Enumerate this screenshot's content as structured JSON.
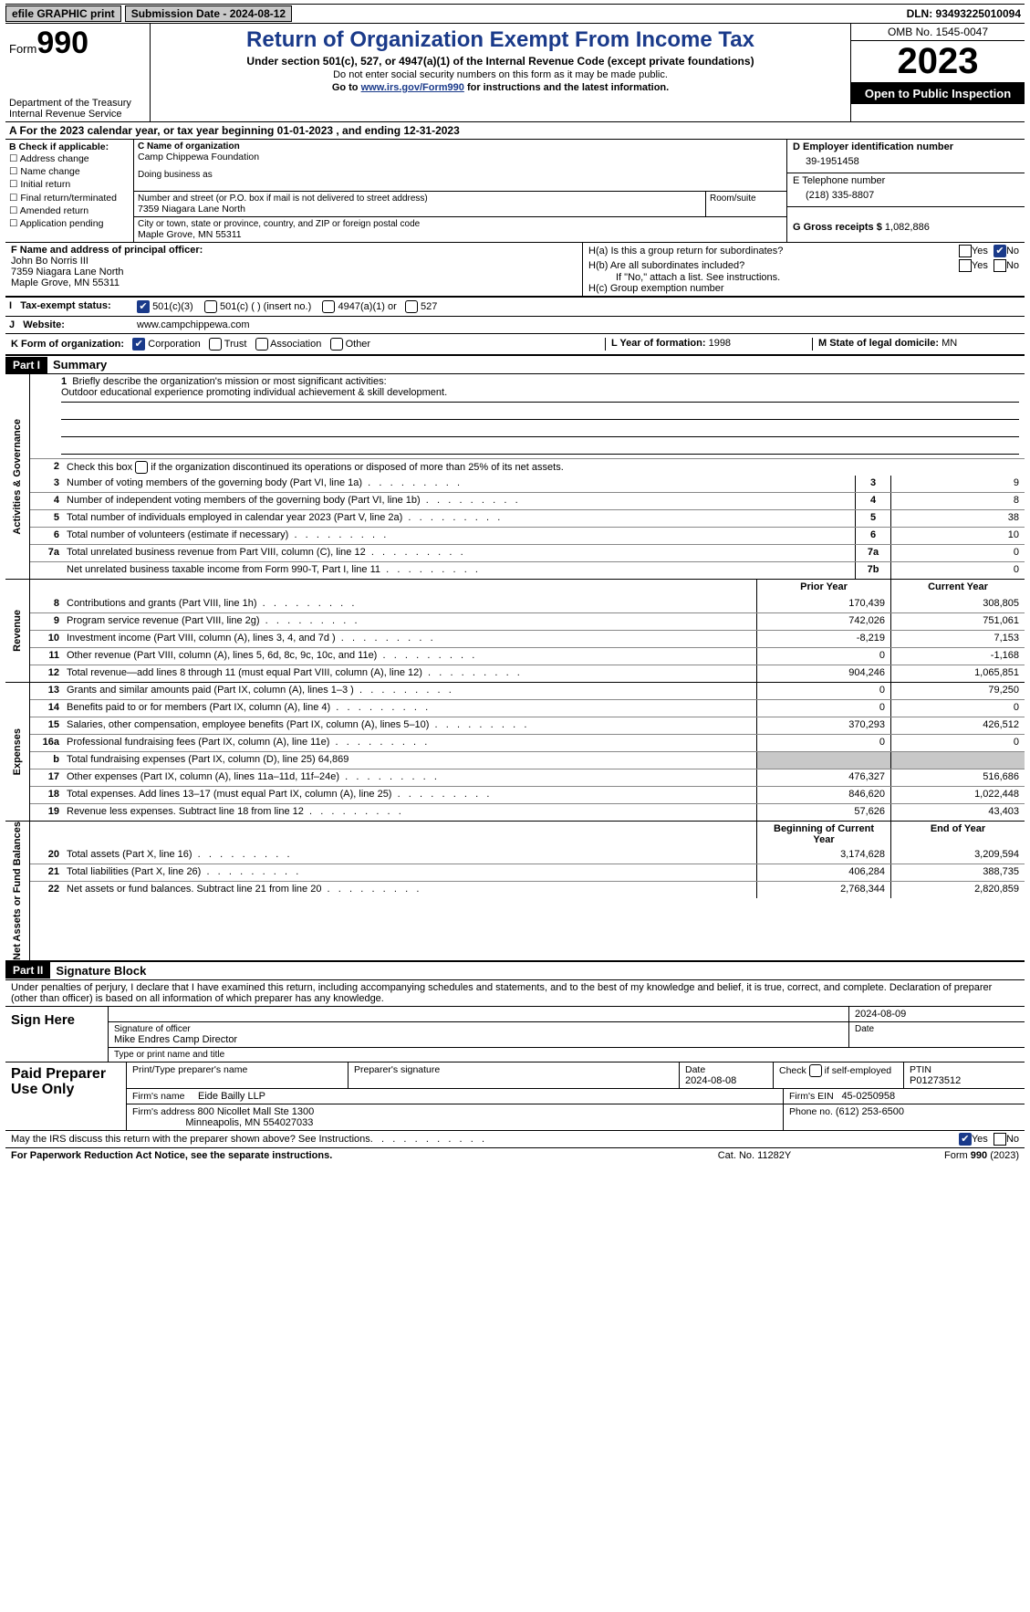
{
  "topbar": {
    "efile": "efile GRAPHIC print",
    "submission": "Submission Date - 2024-08-12",
    "dln": "DLN: 93493225010094"
  },
  "header": {
    "form_prefix": "Form",
    "form_num": "990",
    "dept": "Department of the Treasury",
    "irs": "Internal Revenue Service",
    "title": "Return of Organization Exempt From Income Tax",
    "sub": "Under section 501(c), 527, or 4947(a)(1) of the Internal Revenue Code (except private foundations)",
    "note1": "Do not enter social security numbers on this form as it may be made public.",
    "note2_pre": "Go to ",
    "note2_link": "www.irs.gov/Form990",
    "note2_post": " for instructions and the latest information.",
    "omb": "OMB No. 1545-0047",
    "year": "2023",
    "open": "Open to Public Inspection"
  },
  "section_a": {
    "yearline": "A For the 2023 calendar year, or tax year beginning 01-01-2023    , and ending 12-31-2023",
    "b_label": "B Check if applicable:",
    "b_items": [
      "Address change",
      "Name change",
      "Initial return",
      "Final return/terminated",
      "Amended return",
      "Application pending"
    ],
    "c_name_lbl": "C Name of organization",
    "c_name": "Camp Chippewa Foundation",
    "dba_lbl": "Doing business as",
    "addr_lbl": "Number and street (or P.O. box if mail is not delivered to street address)",
    "addr": "7359 Niagara Lane North",
    "room_lbl": "Room/suite",
    "city_lbl": "City or town, state or province, country, and ZIP or foreign postal code",
    "city": "Maple Grove, MN  55311",
    "d_lbl": "D Employer identification number",
    "d_val": "39-1951458",
    "e_lbl": "E Telephone number",
    "e_val": "(218) 335-8807",
    "g_lbl": "G Gross receipts $",
    "g_val": "1,082,886",
    "f_lbl": "F  Name and address of principal officer:",
    "f_name": "John Bo Norris III",
    "f_addr1": "7359 Niagara Lane North",
    "f_addr2": "Maple Grove, MN  55311",
    "ha_lbl": "H(a)  Is this a group return for subordinates?",
    "hb_lbl": "H(b)  Are all subordinates included?",
    "hb_note": "If \"No,\" attach a list. See instructions.",
    "hc_lbl": "H(c)  Group exemption number",
    "i_lbl": "Tax-exempt status:",
    "i_opts": [
      "501(c)(3)",
      "501(c) (  ) (insert no.)",
      "4947(a)(1) or",
      "527"
    ],
    "j_lbl": "Website:",
    "j_val": "www.campchippewa.com",
    "k_lbl": "K Form of organization:",
    "k_opts": [
      "Corporation",
      "Trust",
      "Association",
      "Other"
    ],
    "l_lbl": "L Year of formation:",
    "l_val": "1998",
    "m_lbl": "M State of legal domicile:",
    "m_val": "MN"
  },
  "parts": {
    "p1": "Part I",
    "p1_title": "Summary",
    "p2": "Part II",
    "p2_title": "Signature Block"
  },
  "summary": {
    "mission_lbl": "Briefly describe the organization's mission or most significant activities:",
    "mission": "Outdoor educational experience promoting individual achievement & skill development.",
    "line2": "Check this box       if the organization discontinued its operations or disposed of more than 25% of its net assets.",
    "side_ag": "Activities & Governance",
    "side_rev": "Revenue",
    "side_exp": "Expenses",
    "side_net": "Net Assets or Fund Balances",
    "prior_hdr": "Prior Year",
    "current_hdr": "Current Year",
    "boy_hdr": "Beginning of Current Year",
    "eoy_hdr": "End of Year",
    "rows_gov": [
      {
        "n": "3",
        "t": "Number of voting members of the governing body (Part VI, line 1a)",
        "b": "3",
        "v": "9"
      },
      {
        "n": "4",
        "t": "Number of independent voting members of the governing body (Part VI, line 1b)",
        "b": "4",
        "v": "8"
      },
      {
        "n": "5",
        "t": "Total number of individuals employed in calendar year 2023 (Part V, line 2a)",
        "b": "5",
        "v": "38"
      },
      {
        "n": "6",
        "t": "Total number of volunteers (estimate if necessary)",
        "b": "6",
        "v": "10"
      },
      {
        "n": "7a",
        "t": "Total unrelated business revenue from Part VIII, column (C), line 12",
        "b": "7a",
        "v": "0"
      },
      {
        "n": "",
        "t": "Net unrelated business taxable income from Form 990-T, Part I, line 11",
        "b": "7b",
        "v": "0"
      }
    ],
    "rows_rev": [
      {
        "n": "8",
        "t": "Contributions and grants (Part VIII, line 1h)",
        "p": "170,439",
        "c": "308,805"
      },
      {
        "n": "9",
        "t": "Program service revenue (Part VIII, line 2g)",
        "p": "742,026",
        "c": "751,061"
      },
      {
        "n": "10",
        "t": "Investment income (Part VIII, column (A), lines 3, 4, and 7d )",
        "p": "-8,219",
        "c": "7,153"
      },
      {
        "n": "11",
        "t": "Other revenue (Part VIII, column (A), lines 5, 6d, 8c, 9c, 10c, and 11e)",
        "p": "0",
        "c": "-1,168"
      },
      {
        "n": "12",
        "t": "Total revenue—add lines 8 through 11 (must equal Part VIII, column (A), line 12)",
        "p": "904,246",
        "c": "1,065,851"
      }
    ],
    "rows_exp": [
      {
        "n": "13",
        "t": "Grants and similar amounts paid (Part IX, column (A), lines 1–3 )",
        "p": "0",
        "c": "79,250"
      },
      {
        "n": "14",
        "t": "Benefits paid to or for members (Part IX, column (A), line 4)",
        "p": "0",
        "c": "0"
      },
      {
        "n": "15",
        "t": "Salaries, other compensation, employee benefits (Part IX, column (A), lines 5–10)",
        "p": "370,293",
        "c": "426,512"
      },
      {
        "n": "16a",
        "t": "Professional fundraising fees (Part IX, column (A), line 11e)",
        "p": "0",
        "c": "0"
      },
      {
        "n": "b",
        "t": "Total fundraising expenses (Part IX, column (D), line 25) 64,869",
        "p": "",
        "c": "",
        "shade": true
      },
      {
        "n": "17",
        "t": "Other expenses (Part IX, column (A), lines 11a–11d, 11f–24e)",
        "p": "476,327",
        "c": "516,686"
      },
      {
        "n": "18",
        "t": "Total expenses. Add lines 13–17 (must equal Part IX, column (A), line 25)",
        "p": "846,620",
        "c": "1,022,448"
      },
      {
        "n": "19",
        "t": "Revenue less expenses. Subtract line 18 from line 12",
        "p": "57,626",
        "c": "43,403"
      }
    ],
    "rows_net": [
      {
        "n": "20",
        "t": "Total assets (Part X, line 16)",
        "p": "3,174,628",
        "c": "3,209,594"
      },
      {
        "n": "21",
        "t": "Total liabilities (Part X, line 26)",
        "p": "406,284",
        "c": "388,735"
      },
      {
        "n": "22",
        "t": "Net assets or fund balances. Subtract line 21 from line 20",
        "p": "2,768,344",
        "c": "2,820,859"
      }
    ]
  },
  "sig": {
    "declare": "Under penalties of perjury, I declare that I have examined this return, including accompanying schedules and statements, and to the best of my knowledge and belief, it is true, correct, and complete. Declaration of preparer (other than officer) is based on all information of which preparer has any knowledge.",
    "sign_here": "Sign Here",
    "date": "2024-08-09",
    "sig_of": "Signature of officer",
    "officer": "Mike Endres  Camp Director",
    "type_title": "Type or print name and title",
    "date_lbl": "Date",
    "paid": "Paid Preparer Use Only",
    "p_name_lbl": "Print/Type preparer's name",
    "p_sig_lbl": "Preparer's signature",
    "p_date_lbl": "Date",
    "p_date": "2024-08-08",
    "p_self": "Check         if self-employed",
    "ptin_lbl": "PTIN",
    "ptin": "P01273512",
    "firm_name_lbl": "Firm's name",
    "firm_name": "Eide Bailly LLP",
    "firm_ein_lbl": "Firm's EIN",
    "firm_ein": "45-0250958",
    "firm_addr_lbl": "Firm's address",
    "firm_addr1": "800 Nicollet Mall Ste 1300",
    "firm_addr2": "Minneapolis, MN  554027033",
    "phone_lbl": "Phone no.",
    "phone": "(612) 253-6500",
    "discuss": "May the IRS discuss this return with the preparer shown above? See Instructions.",
    "yes": "Yes",
    "no": "No"
  },
  "footer": {
    "left": "For Paperwork Reduction Act Notice, see the separate instructions.",
    "mid": "Cat. No. 11282Y",
    "right_pre": "Form ",
    "right_form": "990",
    "right_post": " (2023)"
  }
}
